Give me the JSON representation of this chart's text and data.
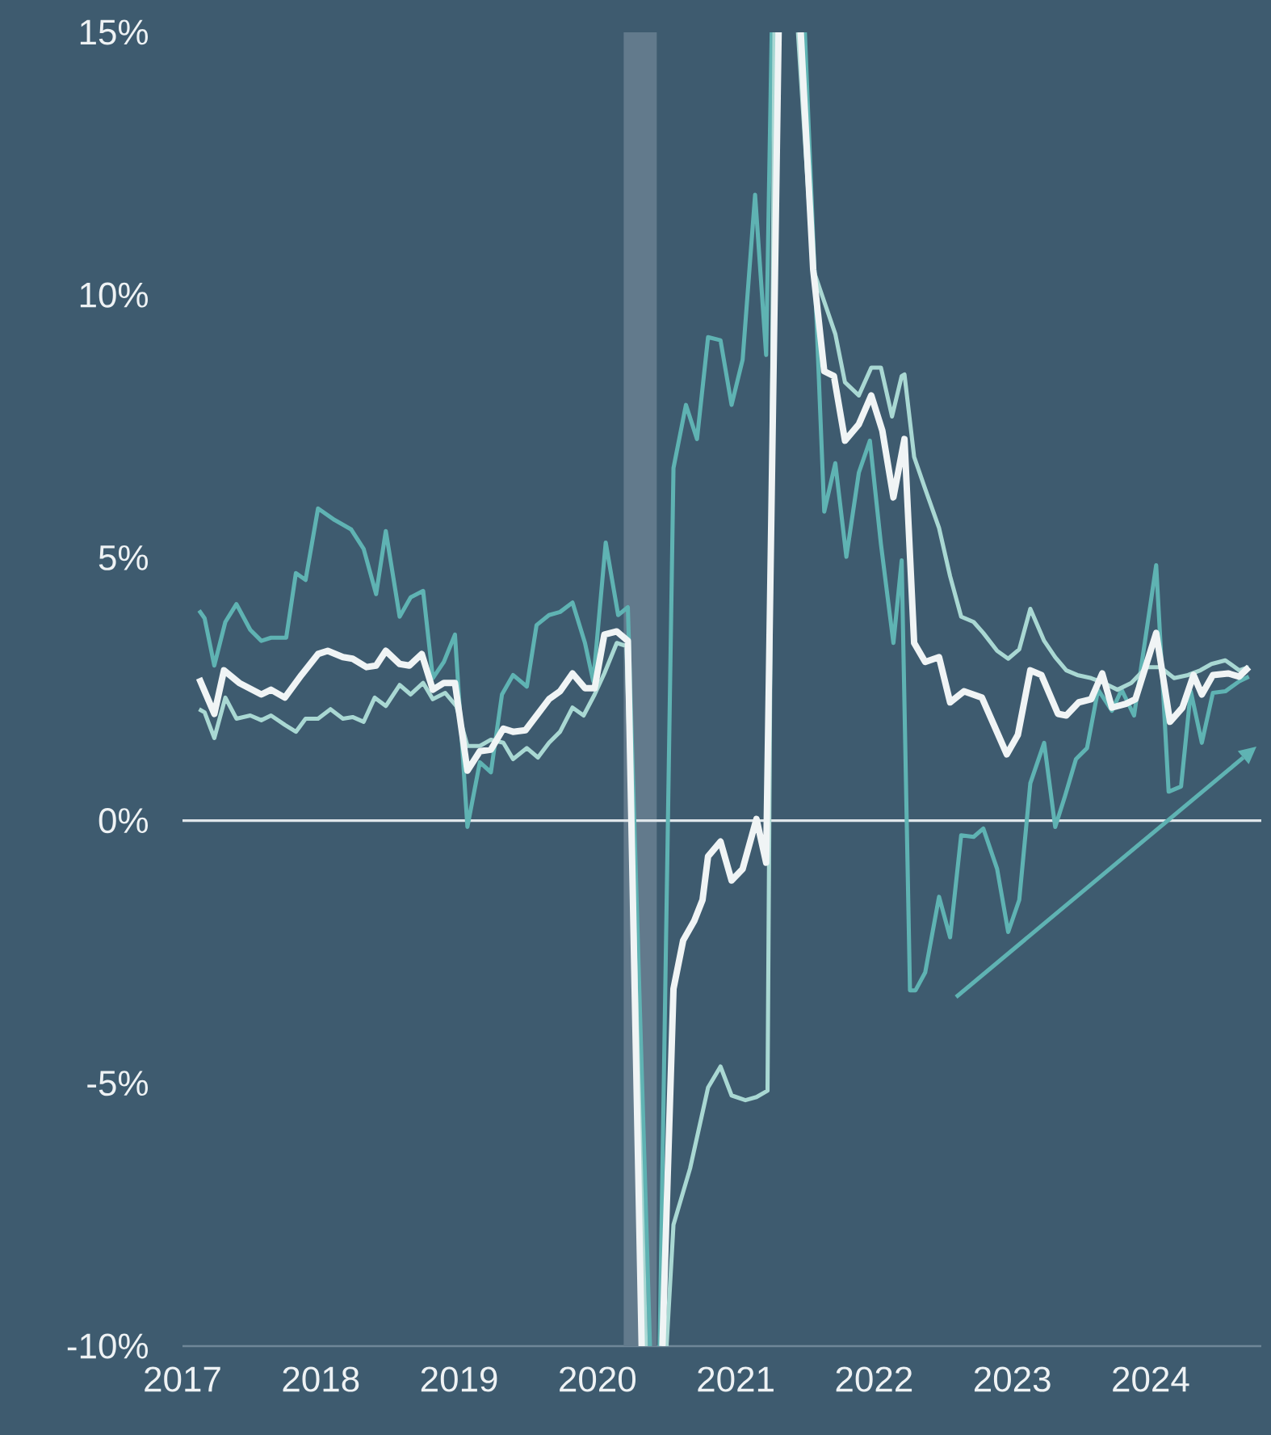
{
  "chart_data": {
    "type": "line",
    "xlim": [
      2017,
      2024.8
    ],
    "xticks": [
      2017,
      2018,
      2019,
      2020,
      2021,
      2022,
      2023,
      2024
    ],
    "ylim": [
      -10,
      15
    ],
    "yticks": [
      {
        "value": -10,
        "label": "-10%"
      },
      {
        "value": -5,
        "label": "-5%"
      },
      {
        "value": 0,
        "label": "0%"
      },
      {
        "value": 5,
        "label": "5%"
      },
      {
        "value": 10,
        "label": "10%"
      },
      {
        "value": 15,
        "label": "15%"
      }
    ],
    "marker": "none",
    "line_style": "solid",
    "bands": [
      {
        "axis": "x",
        "from": 2020.19,
        "to": 2020.43,
        "color": "#627a8c"
      }
    ],
    "ref_lines": [
      {
        "axis": "y",
        "value": 0,
        "color": "#dfe6ea"
      }
    ],
    "series": [
      {
        "color": "#5fb3b3",
        "x": [
          2017.12,
          2017.16,
          2017.23,
          2017.31,
          2017.39,
          2017.49,
          2017.57,
          2017.64,
          2017.75,
          2017.82,
          2017.89,
          2017.98,
          2018.1,
          2018.22,
          2018.31,
          2018.4,
          2018.47,
          2018.57,
          2018.65,
          2018.74,
          2018.81,
          2018.89,
          2018.97,
          2019.06,
          2019.15,
          2019.23,
          2019.31,
          2019.39,
          2019.49,
          2019.56,
          2019.65,
          2019.73,
          2019.82,
          2019.91,
          2019.97,
          2020.06,
          2020.15,
          2020.22,
          2020.38,
          2020.41,
          2020.45,
          2020.55,
          2020.64,
          2020.72,
          2020.8,
          2020.89,
          2020.97,
          2021.05,
          2021.14,
          2021.22,
          2021.26,
          2021.38,
          2021.5,
          2021.64,
          2021.72,
          2021.8,
          2021.89,
          2021.97,
          2022.05,
          2022.14,
          2022.2,
          2022.26,
          2022.3,
          2022.37,
          2022.47,
          2022.55,
          2022.63,
          2022.72,
          2022.79,
          2022.89,
          2022.97,
          2023.05,
          2023.13,
          2023.23,
          2023.31,
          2023.38,
          2023.46,
          2023.54,
          2023.62,
          2023.72,
          2023.79,
          2023.88,
          2024.04,
          2024.13,
          2024.22,
          2024.29,
          2024.37,
          2024.45,
          2024.54,
          2024.64,
          2024.71
        ],
        "values": [
          4.0,
          3.85,
          2.95,
          3.78,
          4.12,
          3.63,
          3.42,
          3.48,
          3.48,
          4.71,
          4.58,
          5.94,
          5.72,
          5.54,
          5.17,
          4.31,
          5.51,
          3.88,
          4.25,
          4.37,
          2.71,
          3.02,
          3.54,
          -0.12,
          1.11,
          0.92,
          2.4,
          2.77,
          2.55,
          3.72,
          3.91,
          3.97,
          4.15,
          3.38,
          2.65,
          5.29,
          3.91,
          4.06,
          -10,
          null,
          -10,
          6.71,
          7.91,
          7.26,
          9.2,
          9.14,
          7.91,
          8.77,
          11.91,
          8.86,
          15,
          null,
          15,
          5.88,
          6.8,
          5.02,
          6.62,
          7.23,
          5.26,
          3.38,
          4.95,
          -3.23,
          -3.23,
          -2.89,
          -1.45,
          -2.22,
          -0.28,
          -0.31,
          -0.15,
          -0.92,
          -2.12,
          -1.51,
          0.71,
          1.48,
          -0.12,
          0.46,
          1.17,
          1.38,
          2.49,
          2.09,
          2.49,
          2.0,
          4.86,
          0.55,
          0.65,
          2.46,
          1.48,
          2.43,
          2.46,
          2.65,
          2.74
        ]
      },
      {
        "color": "#a9d8d3",
        "x": [
          2017.12,
          2017.16,
          2017.23,
          2017.31,
          2017.39,
          2017.49,
          2017.57,
          2017.64,
          2017.74,
          2017.82,
          2017.89,
          2017.98,
          2018.07,
          2018.16,
          2018.23,
          2018.31,
          2018.39,
          2018.47,
          2018.57,
          2018.65,
          2018.74,
          2018.81,
          2018.9,
          2018.98,
          2019.06,
          2019.15,
          2019.23,
          2019.32,
          2019.39,
          2019.49,
          2019.57,
          2019.65,
          2019.73,
          2019.82,
          2019.9,
          2019.98,
          2020.05,
          2020.14,
          2020.21,
          2020.35,
          2020.43,
          2020.5,
          2020.55,
          2020.67,
          2020.8,
          2020.89,
          2020.97,
          2021.07,
          2021.15,
          2021.23,
          2021.28,
          2021.38,
          2021.45,
          2021.56,
          2021.72,
          2021.79,
          2021.89,
          2021.98,
          2022.05,
          2022.13,
          2022.2,
          2022.22,
          2022.29,
          2022.37,
          2022.47,
          2022.55,
          2022.63,
          2022.72,
          2022.79,
          2022.89,
          2022.97,
          2023.05,
          2023.13,
          2023.23,
          2023.31,
          2023.39,
          2023.47,
          2023.57,
          2023.66,
          2023.76,
          2023.86,
          2023.97,
          2024.07,
          2024.17,
          2024.27,
          2024.36,
          2024.44,
          2024.54,
          2024.64,
          2024.71
        ],
        "values": [
          2.12,
          2.06,
          1.57,
          2.34,
          1.94,
          2.0,
          1.91,
          2.0,
          1.82,
          1.69,
          1.94,
          1.94,
          2.12,
          1.94,
          1.97,
          1.88,
          2.34,
          2.18,
          2.58,
          2.4,
          2.62,
          2.31,
          2.43,
          2.18,
          1.42,
          1.42,
          1.54,
          1.48,
          1.17,
          1.38,
          1.2,
          1.48,
          1.69,
          2.15,
          2.0,
          2.4,
          2.8,
          3.38,
          3.32,
          -10,
          null,
          -10,
          -7.69,
          -6.62,
          -5.08,
          -4.68,
          -5.23,
          -5.32,
          -5.26,
          -5.14,
          15,
          null,
          15,
          10.49,
          9.26,
          8.34,
          8.09,
          8.62,
          8.62,
          7.69,
          8.46,
          8.49,
          6.92,
          6.31,
          5.57,
          4.65,
          3.88,
          3.78,
          3.57,
          3.23,
          3.08,
          3.26,
          4.03,
          3.42,
          3.11,
          2.86,
          2.77,
          2.71,
          2.62,
          2.49,
          2.62,
          2.92,
          2.92,
          2.71,
          2.77,
          2.86,
          2.98,
          3.05,
          2.86,
          2.92
        ]
      },
      {
        "color": "#f0f4f5",
        "x": [
          2017.12,
          2017.23,
          2017.3,
          2017.41,
          2017.57,
          2017.64,
          2017.74,
          2017.86,
          2017.98,
          2018.05,
          2018.16,
          2018.23,
          2018.33,
          2018.4,
          2018.47,
          2018.57,
          2018.64,
          2018.73,
          2018.81,
          2018.89,
          2018.97,
          2019.06,
          2019.15,
          2019.23,
          2019.32,
          2019.39,
          2019.48,
          2019.65,
          2019.73,
          2019.82,
          2019.91,
          2019.98,
          2020.05,
          2020.14,
          2020.22,
          2020.32,
          2020.4,
          2020.47,
          2020.55,
          2020.62,
          2020.7,
          2020.76,
          2020.8,
          2020.89,
          2020.97,
          2021.05,
          2021.15,
          2021.22,
          2021.31,
          2021.39,
          2021.47,
          2021.56,
          2021.64,
          2021.71,
          2021.79,
          2021.89,
          2021.98,
          2022.06,
          2022.14,
          2022.22,
          2022.29,
          2022.37,
          2022.47,
          2022.55,
          2022.65,
          2022.78,
          2022.96,
          2023.04,
          2023.13,
          2023.21,
          2023.33,
          2023.39,
          2023.48,
          2023.57,
          2023.65,
          2023.72,
          2023.82,
          2023.89,
          2024.04,
          2024.14,
          2024.23,
          2024.31,
          2024.37,
          2024.45,
          2024.56,
          2024.64,
          2024.71
        ],
        "values": [
          2.71,
          2.03,
          2.86,
          2.62,
          2.4,
          2.49,
          2.34,
          2.77,
          3.17,
          3.23,
          3.11,
          3.08,
          2.92,
          2.95,
          3.23,
          2.98,
          2.95,
          3.17,
          2.49,
          2.62,
          2.62,
          0.95,
          1.32,
          1.35,
          1.75,
          1.69,
          1.72,
          2.31,
          2.46,
          2.8,
          2.52,
          2.52,
          3.54,
          3.6,
          3.42,
          -10,
          null,
          -10,
          -3.2,
          -2.28,
          -1.91,
          -1.51,
          -0.68,
          -0.4,
          -1.14,
          -0.92,
          0.03,
          -0.8,
          15,
          null,
          15,
          10.49,
          8.55,
          8.46,
          7.23,
          7.54,
          8.09,
          7.42,
          6.15,
          7.26,
          3.38,
          3.02,
          3.11,
          2.25,
          2.46,
          2.34,
          1.26,
          1.63,
          2.86,
          2.77,
          2.03,
          2.0,
          2.25,
          2.31,
          2.8,
          2.15,
          2.22,
          2.31,
          3.57,
          1.88,
          2.15,
          2.77,
          2.4,
          2.77,
          2.8,
          2.74,
          2.92
        ]
      }
    ]
  }
}
